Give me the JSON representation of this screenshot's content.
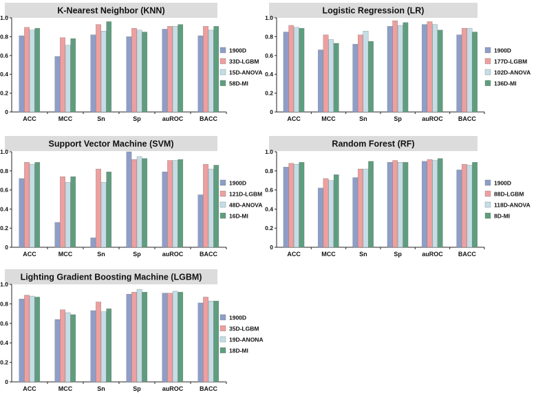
{
  "colors": {
    "s1": "#8E9EC9",
    "s2": "#EE9F9F",
    "s3": "#C4DDE6",
    "s4": "#5E9E7E",
    "title_bg": "#DCDCDC",
    "axis": "#222222",
    "text": "#111111"
  },
  "chart_data": [
    {
      "type": "bar",
      "title": "K-Nearest Neighbor (KNN)",
      "categories": [
        "ACC",
        "MCC",
        "Sn",
        "Sp",
        "auROC",
        "BACC"
      ],
      "ylim": [
        0,
        1.0
      ],
      "yticks": [
        "0",
        "0.2",
        "0.4",
        "0.6",
        "0.8",
        "1.0"
      ],
      "legend_position": "right",
      "series": [
        {
          "name": "1900D",
          "values": [
            0.81,
            0.59,
            0.82,
            0.8,
            0.88,
            0.81
          ]
        },
        {
          "name": "33D-LGBM",
          "values": [
            0.9,
            0.79,
            0.93,
            0.89,
            0.91,
            0.91
          ]
        },
        {
          "name": "15D-ANOVA",
          "values": [
            0.87,
            0.71,
            0.86,
            0.87,
            0.91,
            0.87
          ]
        },
        {
          "name": "58D-MI",
          "values": [
            0.89,
            0.78,
            0.96,
            0.85,
            0.93,
            0.91
          ]
        }
      ]
    },
    {
      "type": "bar",
      "title": "Logistic Regression (LR)",
      "categories": [
        "ACC",
        "MCC",
        "Sn",
        "Sp",
        "auROC",
        "BACC"
      ],
      "ylim": [
        0,
        1.0
      ],
      "yticks": [
        "0",
        "0.2",
        "0.4",
        "0.6",
        "0.8",
        "1.0"
      ],
      "legend_position": "right",
      "series": [
        {
          "name": "1900D",
          "values": [
            0.85,
            0.66,
            0.72,
            0.91,
            0.93,
            0.82
          ]
        },
        {
          "name": "177D-LGBM",
          "values": [
            0.92,
            0.82,
            0.82,
            0.97,
            0.96,
            0.89
          ]
        },
        {
          "name": "102D-ANOVA",
          "values": [
            0.9,
            0.77,
            0.86,
            0.92,
            0.93,
            0.89
          ]
        },
        {
          "name": "136D-MI",
          "values": [
            0.89,
            0.73,
            0.75,
            0.95,
            0.87,
            0.85
          ]
        }
      ]
    },
    {
      "type": "bar",
      "title": "Support Vector Machine (SVM)",
      "categories": [
        "ACC",
        "MCC",
        "Sn",
        "Sp",
        "auROC",
        "BACC"
      ],
      "ylim": [
        0,
        1.0
      ],
      "yticks": [
        "0",
        "0.2",
        "0.4",
        "0.6",
        "0.8",
        "1.0"
      ],
      "legend_position": "right",
      "series": [
        {
          "name": "1900D",
          "values": [
            0.72,
            0.26,
            0.1,
            1.0,
            0.79,
            0.55
          ]
        },
        {
          "name": "121D-LGBM",
          "values": [
            0.89,
            0.74,
            0.82,
            0.92,
            0.91,
            0.87
          ]
        },
        {
          "name": "48D-ANOVA",
          "values": [
            0.87,
            0.68,
            0.68,
            0.95,
            0.91,
            0.82
          ]
        },
        {
          "name": "16D-MI",
          "values": [
            0.89,
            0.74,
            0.79,
            0.93,
            0.92,
            0.86
          ]
        }
      ]
    },
    {
      "type": "bar",
      "title": "Random Forest (RF)",
      "categories": [
        "ACC",
        "MCC",
        "Sn",
        "Sp",
        "auROC",
        "BACC"
      ],
      "ylim": [
        0,
        1.0
      ],
      "yticks": [
        "0",
        "0.2",
        "0.4",
        "0.6",
        "0.8",
        "1.0"
      ],
      "legend_position": "right",
      "series": [
        {
          "name": "1900D",
          "values": [
            0.84,
            0.62,
            0.73,
            0.89,
            0.9,
            0.81
          ]
        },
        {
          "name": "88D-LGBM",
          "values": [
            0.88,
            0.72,
            0.82,
            0.91,
            0.92,
            0.87
          ]
        },
        {
          "name": "118D-ANOVA",
          "values": [
            0.87,
            0.7,
            0.82,
            0.89,
            0.91,
            0.86
          ]
        },
        {
          "name": "8D-MI",
          "values": [
            0.89,
            0.76,
            0.9,
            0.89,
            0.93,
            0.89
          ]
        }
      ]
    },
    {
      "type": "bar",
      "title": "Lighting Gradient Boosting Machine (LGBM)",
      "categories": [
        "ACC",
        "MCC",
        "Sn",
        "Sp",
        "auROC",
        "BACC"
      ],
      "ylim": [
        0,
        1.0
      ],
      "yticks": [
        "0",
        "0.2",
        "0.4",
        "0.6",
        "0.8",
        "1.0"
      ],
      "legend_position": "right",
      "series": [
        {
          "name": "1900D",
          "values": [
            0.85,
            0.64,
            0.73,
            0.9,
            0.91,
            0.81
          ]
        },
        {
          "name": "35D-LGBM",
          "values": [
            0.89,
            0.74,
            0.82,
            0.92,
            0.91,
            0.87
          ]
        },
        {
          "name": "19D-ANONA",
          "values": [
            0.88,
            0.71,
            0.72,
            0.95,
            0.93,
            0.83
          ]
        },
        {
          "name": "18D-MI",
          "values": [
            0.87,
            0.69,
            0.75,
            0.92,
            0.92,
            0.83
          ]
        }
      ]
    }
  ]
}
